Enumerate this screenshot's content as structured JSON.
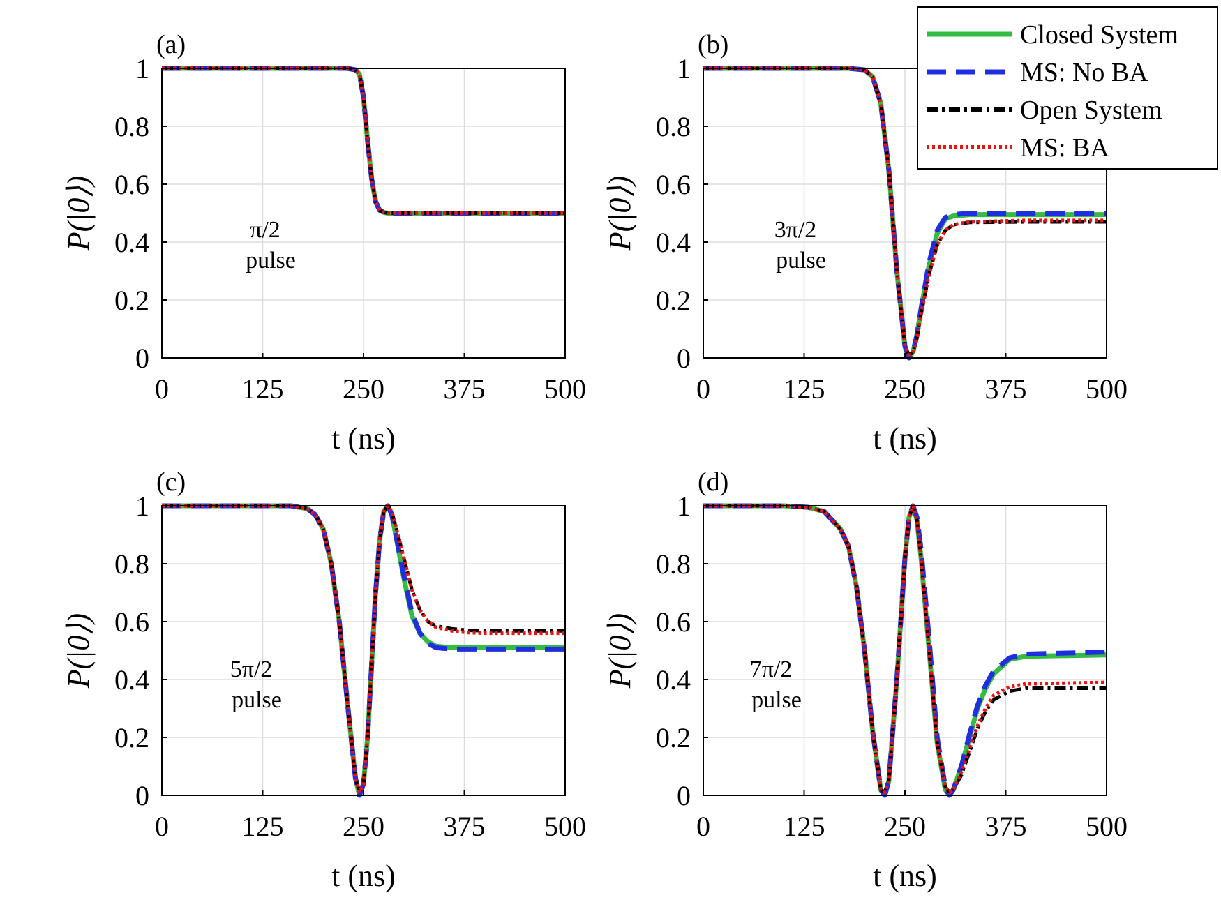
{
  "colors": {
    "closed": "#33bb44",
    "no_ba": "#1f2fe0",
    "open": "#000000",
    "ba": "#ee1111",
    "grid": "#dddddd"
  },
  "legend": {
    "placement": "top-right",
    "entries": [
      "Closed System",
      "MS: No BA",
      "Open System",
      "MS: BA"
    ]
  },
  "chart_data": [
    {
      "type": "line",
      "panel_label": "(a)",
      "annotation": [
        "π/2",
        "pulse"
      ],
      "xlabel": "t (ns)",
      "ylabel": "P(|0⟩)",
      "xlim": [
        0,
        500
      ],
      "ylim": [
        0,
        1
      ],
      "xticks": [
        "0",
        "125",
        "250",
        "375",
        "500"
      ],
      "yticks": [
        "0",
        "0.2",
        "0.4",
        "0.6",
        "0.8",
        "1"
      ],
      "grid": true,
      "x": [
        0,
        100,
        200,
        230,
        240,
        245,
        250,
        255,
        260,
        265,
        270,
        275,
        280,
        300,
        400,
        500
      ],
      "series": [
        {
          "name": "Closed System",
          "values": [
            1,
            1,
            1,
            1,
            0.995,
            0.98,
            0.9,
            0.75,
            0.62,
            0.54,
            0.51,
            0.503,
            0.5,
            0.5,
            0.5,
            0.5
          ]
        },
        {
          "name": "MS: No BA",
          "values": [
            1,
            1,
            1,
            1,
            0.995,
            0.98,
            0.9,
            0.75,
            0.62,
            0.54,
            0.51,
            0.503,
            0.5,
            0.5,
            0.5,
            0.5
          ]
        },
        {
          "name": "Open System",
          "values": [
            1,
            1,
            1,
            1,
            0.995,
            0.98,
            0.9,
            0.75,
            0.62,
            0.54,
            0.51,
            0.503,
            0.5,
            0.5,
            0.5,
            0.5
          ]
        },
        {
          "name": "MS: BA",
          "values": [
            1,
            1,
            1,
            1,
            0.995,
            0.98,
            0.9,
            0.75,
            0.62,
            0.54,
            0.51,
            0.503,
            0.5,
            0.5,
            0.5,
            0.5
          ]
        }
      ]
    },
    {
      "type": "line",
      "panel_label": "(b)",
      "annotation": [
        "3π/2",
        "pulse"
      ],
      "xlabel": "t (ns)",
      "ylabel": "P(|0⟩)",
      "xlim": [
        0,
        500
      ],
      "ylim": [
        0,
        1
      ],
      "xticks": [
        "0",
        "125",
        "250",
        "375",
        "500"
      ],
      "yticks": [
        "0",
        "0.2",
        "0.4",
        "0.6",
        "0.8",
        "1"
      ],
      "grid": true,
      "x": [
        0,
        100,
        180,
        200,
        210,
        220,
        230,
        240,
        250,
        255,
        260,
        265,
        270,
        280,
        290,
        300,
        310,
        330,
        400,
        500
      ],
      "series": [
        {
          "name": "Closed System",
          "values": [
            1,
            1,
            1,
            0.995,
            0.97,
            0.88,
            0.65,
            0.3,
            0.04,
            0,
            0.02,
            0.08,
            0.17,
            0.32,
            0.43,
            0.48,
            0.49,
            0.495,
            0.495,
            0.495
          ]
        },
        {
          "name": "MS: No BA",
          "values": [
            1,
            1,
            1,
            0.995,
            0.97,
            0.88,
            0.65,
            0.3,
            0.04,
            0,
            0.02,
            0.08,
            0.17,
            0.33,
            0.44,
            0.485,
            0.495,
            0.5,
            0.5,
            0.5
          ]
        },
        {
          "name": "Open System",
          "values": [
            1,
            1,
            1,
            0.995,
            0.97,
            0.88,
            0.65,
            0.3,
            0.04,
            0.01,
            0.02,
            0.07,
            0.15,
            0.29,
            0.39,
            0.44,
            0.46,
            0.468,
            0.47,
            0.47
          ]
        },
        {
          "name": "MS: BA",
          "values": [
            1,
            1,
            1,
            0.995,
            0.97,
            0.88,
            0.65,
            0.3,
            0.04,
            0.01,
            0.02,
            0.07,
            0.15,
            0.29,
            0.39,
            0.44,
            0.46,
            0.47,
            0.475,
            0.475
          ]
        }
      ]
    },
    {
      "type": "line",
      "panel_label": "(c)",
      "annotation": [
        "5π/2",
        "pulse"
      ],
      "xlabel": "t (ns)",
      "ylabel": "P(|0⟩)",
      "xlim": [
        0,
        500
      ],
      "ylim": [
        0,
        1
      ],
      "xticks": [
        "0",
        "125",
        "250",
        "375",
        "500"
      ],
      "yticks": [
        "0",
        "0.2",
        "0.4",
        "0.6",
        "0.8",
        "1"
      ],
      "grid": true,
      "x": [
        0,
        100,
        160,
        180,
        190,
        200,
        210,
        220,
        230,
        240,
        245,
        250,
        255,
        260,
        265,
        270,
        275,
        280,
        285,
        290,
        300,
        310,
        320,
        330,
        340,
        360,
        380,
        400,
        500
      ],
      "series": [
        {
          "name": "Closed System",
          "values": [
            1,
            1,
            1,
            0.99,
            0.97,
            0.92,
            0.8,
            0.6,
            0.32,
            0.06,
            0,
            0.04,
            0.2,
            0.45,
            0.7,
            0.88,
            0.98,
            1,
            0.97,
            0.9,
            0.75,
            0.62,
            0.56,
            0.53,
            0.515,
            0.51,
            0.51,
            0.51,
            0.51
          ]
        },
        {
          "name": "MS: No BA",
          "values": [
            1,
            1,
            1,
            0.99,
            0.97,
            0.92,
            0.8,
            0.6,
            0.32,
            0.06,
            0,
            0.04,
            0.2,
            0.45,
            0.7,
            0.88,
            0.98,
            1,
            0.97,
            0.9,
            0.76,
            0.63,
            0.56,
            0.525,
            0.51,
            0.505,
            0.505,
            0.505,
            0.505
          ]
        },
        {
          "name": "Open System",
          "values": [
            1,
            1,
            1,
            0.99,
            0.97,
            0.92,
            0.8,
            0.6,
            0.32,
            0.06,
            0.01,
            0.04,
            0.2,
            0.45,
            0.7,
            0.88,
            0.98,
            1,
            0.98,
            0.93,
            0.82,
            0.71,
            0.64,
            0.6,
            0.585,
            0.575,
            0.57,
            0.568,
            0.568
          ]
        },
        {
          "name": "MS: BA",
          "values": [
            1,
            1,
            1,
            0.99,
            0.97,
            0.92,
            0.8,
            0.6,
            0.32,
            0.06,
            0.01,
            0.04,
            0.2,
            0.45,
            0.7,
            0.88,
            0.98,
            1,
            0.98,
            0.93,
            0.82,
            0.71,
            0.64,
            0.6,
            0.58,
            0.568,
            0.562,
            0.56,
            0.56
          ]
        }
      ]
    },
    {
      "type": "line",
      "panel_label": "(d)",
      "annotation": [
        "7π/2",
        "pulse"
      ],
      "xlabel": "t (ns)",
      "ylabel": "P(|0⟩)",
      "xlim": [
        0,
        500
      ],
      "ylim": [
        0,
        1
      ],
      "xticks": [
        "0",
        "125",
        "250",
        "375",
        "500"
      ],
      "yticks": [
        "0",
        "0.2",
        "0.4",
        "0.6",
        "0.8",
        "1"
      ],
      "grid": true,
      "x": [
        0,
        100,
        130,
        150,
        170,
        180,
        190,
        200,
        210,
        220,
        225,
        230,
        240,
        250,
        255,
        260,
        265,
        270,
        280,
        290,
        300,
        305,
        310,
        320,
        330,
        340,
        350,
        360,
        380,
        400,
        500
      ],
      "series": [
        {
          "name": "Closed System",
          "values": [
            1,
            1,
            0.995,
            0.98,
            0.92,
            0.86,
            0.72,
            0.5,
            0.22,
            0.02,
            0,
            0.05,
            0.4,
            0.82,
            0.96,
            1,
            0.95,
            0.82,
            0.5,
            0.18,
            0.02,
            0,
            0.02,
            0.1,
            0.2,
            0.3,
            0.37,
            0.42,
            0.47,
            0.48,
            0.485
          ]
        },
        {
          "name": "MS: No BA",
          "values": [
            1,
            1,
            0.995,
            0.98,
            0.92,
            0.86,
            0.72,
            0.5,
            0.22,
            0.02,
            0,
            0.05,
            0.4,
            0.82,
            0.96,
            1,
            0.96,
            0.85,
            0.54,
            0.2,
            0.03,
            0,
            0.02,
            0.1,
            0.21,
            0.31,
            0.38,
            0.43,
            0.475,
            0.488,
            0.495
          ]
        },
        {
          "name": "Open System",
          "values": [
            1,
            1,
            0.995,
            0.98,
            0.92,
            0.86,
            0.72,
            0.5,
            0.22,
            0.02,
            0.01,
            0.05,
            0.4,
            0.82,
            0.96,
            1,
            0.95,
            0.82,
            0.5,
            0.18,
            0.03,
            0.01,
            0.02,
            0.07,
            0.15,
            0.23,
            0.29,
            0.33,
            0.36,
            0.37,
            0.37
          ]
        },
        {
          "name": "MS: BA",
          "values": [
            1,
            1,
            0.995,
            0.98,
            0.92,
            0.86,
            0.72,
            0.5,
            0.22,
            0.02,
            0.01,
            0.05,
            0.4,
            0.82,
            0.96,
            1,
            0.95,
            0.82,
            0.5,
            0.18,
            0.03,
            0.01,
            0.02,
            0.08,
            0.16,
            0.24,
            0.3,
            0.345,
            0.375,
            0.385,
            0.39
          ]
        }
      ]
    }
  ]
}
